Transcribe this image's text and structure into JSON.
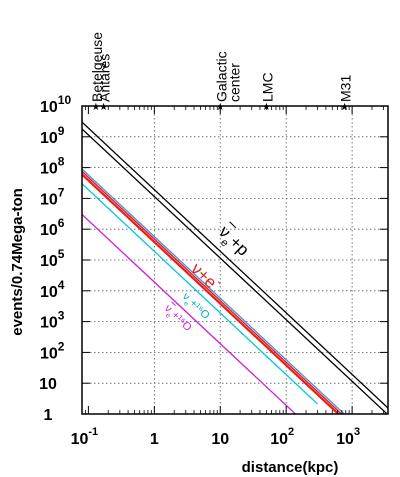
{
  "chart_data": {
    "type": "line",
    "title": "",
    "xlabel": "distance(kpc)",
    "ylabel": "events/0.74Mega-ton",
    "x_scale": "log",
    "y_scale": "log",
    "xlim": [
      0.08,
      3500
    ],
    "ylim": [
      1,
      10000000000
    ],
    "grid": true,
    "x_ticks": [
      {
        "value": 0.1,
        "base": "10",
        "exp": "-1"
      },
      {
        "value": 1,
        "base": "1",
        "exp": ""
      },
      {
        "value": 10,
        "base": "10",
        "exp": ""
      },
      {
        "value": 100,
        "base": "10",
        "exp": "2"
      },
      {
        "value": 1000,
        "base": "10",
        "exp": "3"
      }
    ],
    "y_ticks": [
      {
        "value": 1,
        "base": "1",
        "exp": ""
      },
      {
        "value": 10,
        "base": "10",
        "exp": ""
      },
      {
        "value": 100,
        "base": "10",
        "exp": "2"
      },
      {
        "value": 1000,
        "base": "10",
        "exp": "3"
      },
      {
        "value": 10000,
        "base": "10",
        "exp": "4"
      },
      {
        "value": 100000,
        "base": "10",
        "exp": "5"
      },
      {
        "value": 1000000,
        "base": "10",
        "exp": "6"
      },
      {
        "value": 10000000,
        "base": "10",
        "exp": "7"
      },
      {
        "value": 100000000,
        "base": "10",
        "exp": "8"
      },
      {
        "value": 1000000000,
        "base": "10",
        "exp": "9"
      },
      {
        "value": 10000000000,
        "base": "10",
        "exp": "10"
      }
    ],
    "markers": [
      {
        "name": "Betelgeuse",
        "lines": [
          "Betelgeuse"
        ],
        "x": 0.13
      },
      {
        "name": "Antares",
        "lines": [
          "Antares"
        ],
        "x": 0.17
      },
      {
        "name": "Galactic center",
        "lines": [
          "Galactic",
          "center"
        ],
        "x": 10
      },
      {
        "name": "LMC",
        "lines": [
          "LMC"
        ],
        "x": 50
      },
      {
        "name": "M31",
        "lines": [
          "M31"
        ],
        "x": 770
      }
    ],
    "series": [
      {
        "key": "nuebar-p-upper",
        "color": "#000000",
        "width": 1.3,
        "points": [
          [
            0.08,
            3000000000
          ],
          [
            3500,
            1.57
          ]
        ]
      },
      {
        "key": "nuebar-p-lower",
        "color": "#000000",
        "width": 1.3,
        "points": [
          [
            0.08,
            1800000000
          ],
          [
            3500,
            0.94
          ]
        ]
      },
      {
        "key": "nu-e-blue",
        "color": "#4a8fe0",
        "width": 1.3,
        "points": [
          [
            0.08,
            90000000
          ],
          [
            800,
            0.9
          ]
        ]
      },
      {
        "key": "nu-e-red-a",
        "color": "#e02020",
        "width": 2.2,
        "points": [
          [
            0.08,
            60000000
          ],
          [
            700,
            0.78
          ]
        ]
      },
      {
        "key": "nu-e-red-b",
        "color": "#e02020",
        "width": 1.4,
        "points": [
          [
            0.08,
            75000000
          ],
          [
            700,
            0.97
          ]
        ]
      },
      {
        "key": "nue-o16",
        "color": "#00c8d8",
        "width": 1.3,
        "points": [
          [
            0.08,
            30000000
          ],
          [
            300,
            2.1
          ]
        ]
      },
      {
        "key": "nuebar-o16",
        "color": "#d020d8",
        "width": 1.3,
        "points": [
          [
            0.08,
            3000000
          ],
          [
            150,
            0.85
          ]
        ]
      }
    ],
    "curve_labels": {
      "nuebar_p": {
        "nu": "ν",
        "sub": "e",
        "rest": "+p",
        "color": "#000000"
      },
      "nu_e": {
        "text": "ν+e",
        "sup": "-",
        "color": "#e02020"
      },
      "nue_o16": {
        "nu": "ν",
        "sub": "e",
        "rest": "+¹⁶O",
        "color": "#00b0c0"
      },
      "nuebar_o16": {
        "nu": "ν",
        "sub": "e",
        "rest": "+¹⁶O",
        "color": "#d020d8"
      }
    }
  }
}
